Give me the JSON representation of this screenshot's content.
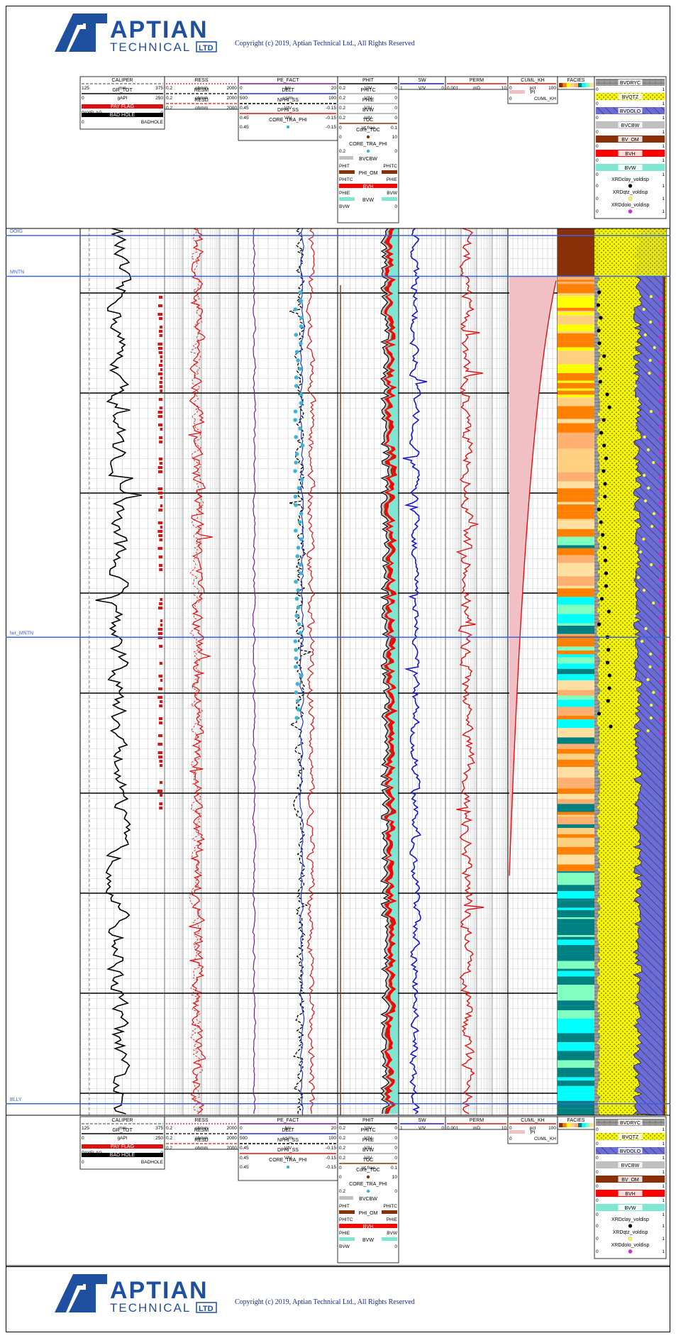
{
  "brand": {
    "name": "APTIAN",
    "subname": "TECHNICAL",
    "ltd": "LTD",
    "copyright": "Copyright (c) 2019, Aptian Technical Ltd., All Rights Reserved",
    "color": "#1f4f9f"
  },
  "headers": {
    "caliper": {
      "title": "CALIPER",
      "min": "125",
      "unit": "mm",
      "max": "375"
    },
    "gr": {
      "title": "GR_TOT",
      "min": "0",
      "unit": "gAPI",
      "max": "250"
    },
    "payflag": {
      "title": "PAY FLAG",
      "left": "PAYFLAG",
      "right": "0"
    },
    "badhole": {
      "title": "BAD HOLE",
      "left": "0",
      "right": "BADHOLE"
    },
    "ress": {
      "title": "RESS",
      "min": "0.2",
      "unit": "ohmm",
      "max": "2000"
    },
    "resm": {
      "title": "RESM",
      "min": "0.2",
      "unit": "ohmm",
      "max": "2000"
    },
    "resd": {
      "title": "RESD",
      "min": "0.2",
      "unit": "ohmm",
      "max": "2000"
    },
    "pe": {
      "title": "PE_FACT",
      "min": "0",
      "unit": "b/e",
      "max": "20"
    },
    "delt": {
      "title": "DELT",
      "min": "500",
      "unit": "us/m",
      "max": "100"
    },
    "nphi": {
      "title": "NPHI_SS",
      "min": "0.45",
      "unit": "V/V",
      "max": "-0.15"
    },
    "dphi": {
      "title": "DPHI_SS",
      "min": "0.45",
      "unit": "V/V",
      "max": "-0.15"
    },
    "core_phi": {
      "title": "CORE_TRA_PHI",
      "min": "0.45",
      "max": "-0.15"
    },
    "phit": {
      "title": "PHIT",
      "min": "0.2",
      "unit": "V/V",
      "max": "0"
    },
    "phitc": {
      "title": "PHITC",
      "min": "0.2",
      "unit": "V/V",
      "max": "0"
    },
    "phie": {
      "title": "PHIE",
      "min": "0.2",
      "unit": "V/V",
      "max": "0"
    },
    "bvw": {
      "title": "BVW",
      "min": "0.2",
      "unit": "V/V",
      "max": "0"
    },
    "toc": {
      "title": "TOC",
      "min": "0",
      "unit": "wt frac",
      "max": "0.1"
    },
    "core_toc": {
      "title": "Core_TOC",
      "min": "0",
      "max": "10"
    },
    "core_tra_phi2": {
      "title": "CORE_TRA_PHI",
      "min": "0.2",
      "max": "0"
    },
    "bvcbw": {
      "title": "BVCBW",
      "left": "PHIT",
      "right": "PHITC"
    },
    "phi_om": {
      "title": "PHI_OM",
      "left": "PHITC",
      "right": "PHIE"
    },
    "bvh": {
      "title": "BVH",
      "left": "PHIE",
      "right": "BVW"
    },
    "bvw_fill": {
      "title": "BVW",
      "left": "BVW",
      "right": "0"
    },
    "sw": {
      "title": "SW",
      "min": "1",
      "unit": "V/V",
      "max": "0"
    },
    "perm": {
      "title": "PERM",
      "min": "0.001",
      "unit": "mD",
      "max": "10"
    },
    "cuml": {
      "title": "CUML_KH",
      "min": "0",
      "unit": "pct",
      "max": "100"
    },
    "pi": {
      "title": "PI",
      "left": "0",
      "right": "CUML_KH"
    },
    "facies": {
      "title": "FACIES"
    },
    "lith": {
      "bvdryc": "BVDRYC",
      "bvqtz": "BVQTZ",
      "bvdolo": "BVDOLO",
      "bvcbw": "BVCBW",
      "bvom": "BV_OM",
      "bvh": "BVH",
      "bvw": "BVW",
      "xrdclay": "XRDclay_voldisp",
      "xrdqtz": "XRDqtz_voldisp",
      "xrddolo": "XRDdolo_voldisp",
      "zero": "0",
      "one": "1"
    }
  },
  "tops": [
    {
      "name": "DOIG",
      "depth_frac": 0.008
    },
    {
      "name": "MNTN",
      "depth_frac": 0.054
    },
    {
      "name": "lwr_MNTN",
      "depth_frac": 0.461
    },
    {
      "name": "BLLY",
      "depth_frac": 0.987
    }
  ],
  "colors": {
    "tops": "#3a64d8",
    "gr": "#000",
    "res": "#e01010",
    "pe": "#7a1a9a",
    "delt": "#1f35d0",
    "nphi": "#000",
    "dphi": "#e01010",
    "core": "#3bb4d8",
    "phit": "#000",
    "sw": "#1515d0",
    "perm": "#e01010",
    "pi": "#f0c0c4",
    "toc": "#8a3008",
    "bvom": "#8a3008",
    "bvh": "#ff0000",
    "bvw": "#7fe6d2",
    "bvcbw": "#c0c0c0",
    "qtz": "#f0f000",
    "dolo": "#6c6cd8",
    "payflag": "#e01010"
  },
  "chart_data": {
    "type": "well-log",
    "tracks": [
      "CALIPER / GR_TOT / PAY FLAG / BAD HOLE",
      "RESS / RESM / RESD",
      "PE_FACT / DELT / NPHI_SS / DPHI_SS / CORE_TRA_PHI",
      "PHIT / PHITC / PHIE / BVW / TOC / Core_TOC",
      "SW",
      "PERM",
      "CUML_KH / PI",
      "FACIES",
      "Lithology volumes"
    ],
    "facies_colors": [
      "#8a3008",
      "#ff8000",
      "#ffff00",
      "#ffd080",
      "#ffb070",
      "#008080",
      "#00ffff",
      "#80ffc0",
      "#ffe0a0"
    ],
    "cuml_kh": {
      "start_pct": 0,
      "end_pct": 100,
      "start_top": "MNTN",
      "end_depth_frac": 0.73
    }
  }
}
